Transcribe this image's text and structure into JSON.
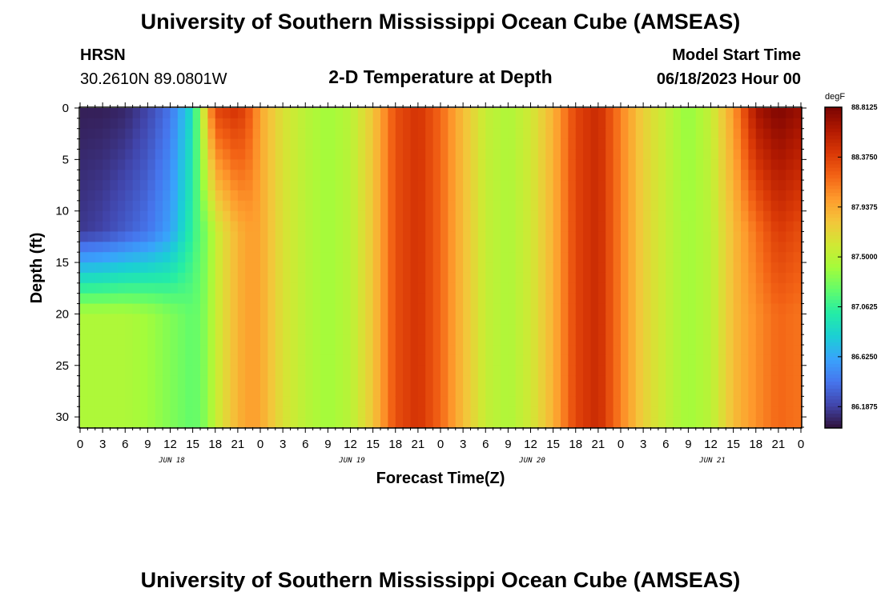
{
  "chart_data": {
    "type": "heatmap",
    "title": "University of Southern Mississippi Ocean Cube (AMSEAS)",
    "station": "HRSN",
    "location": "30.2610N  89.0801W",
    "subtitle": "2-D Temperature at Depth",
    "model_start_label": "Model Start Time",
    "model_start": "06/18/2023 Hour 00",
    "xlabel": "Forecast Time(Z)",
    "ylabel": "Depth (ft)",
    "x_hour_range": [
      0,
      96
    ],
    "y_range": [
      0,
      31
    ],
    "x_tick_labels": [
      "0",
      "3",
      "6",
      "9",
      "12",
      "15",
      "18",
      "21",
      "0",
      "3",
      "6",
      "9",
      "12",
      "15",
      "18",
      "21",
      "0",
      "3",
      "6",
      "9",
      "12",
      "15",
      "18",
      "21",
      "0",
      "3",
      "6",
      "9",
      "12",
      "15",
      "18",
      "21",
      "0"
    ],
    "y_tick_labels": [
      "0",
      "5",
      "10",
      "15",
      "20",
      "25",
      "30"
    ],
    "date_labels": [
      "JUN 18",
      "JUN 19",
      "JUN 20",
      "JUN 21"
    ],
    "colorbar": {
      "units": "degF",
      "range": [
        86.0,
        88.8125
      ],
      "tick_labels": [
        "88.8125",
        "88.3750",
        "87.9375",
        "87.5000",
        "87.0625",
        "86.6250",
        "86.1875"
      ],
      "colors": [
        "#30123b",
        "#4145ab",
        "#4675ed",
        "#39a2fc",
        "#1bcfd4",
        "#24eca6",
        "#61fc6c",
        "#a4fc3b",
        "#d1e834",
        "#f3c63a",
        "#fe9b2d",
        "#f36315",
        "#d93806",
        "#b11901",
        "#7a0402"
      ]
    },
    "columns": [
      {
        "hour": 0,
        "surface": 86.05,
        "mid": 86.15,
        "deep": 87.45
      },
      {
        "hour": 3,
        "surface": 86.05,
        "mid": 86.2,
        "deep": 87.45
      },
      {
        "hour": 6,
        "surface": 86.08,
        "mid": 86.3,
        "deep": 87.45
      },
      {
        "hour": 9,
        "surface": 86.2,
        "mid": 86.4,
        "deep": 87.4
      },
      {
        "hour": 12,
        "surface": 86.4,
        "mid": 86.6,
        "deep": 87.3
      },
      {
        "hour": 15,
        "surface": 86.9,
        "mid": 87.05,
        "deep": 87.2
      },
      {
        "hour": 16,
        "surface": 87.4,
        "mid": 87.2,
        "deep": 87.25
      },
      {
        "hour": 17,
        "surface": 87.9,
        "mid": 87.3,
        "deep": 87.35
      },
      {
        "hour": 18,
        "surface": 88.35,
        "mid": 87.55,
        "deep": 87.55
      },
      {
        "hour": 21,
        "surface": 88.45,
        "mid": 87.9,
        "deep": 87.9
      },
      {
        "hour": 23,
        "surface": 88.2,
        "mid": 88.0,
        "deep": 88.0
      },
      {
        "hour": 24,
        "surface": 87.95,
        "mid": 87.95,
        "deep": 87.95
      },
      {
        "hour": 27,
        "surface": 87.65,
        "mid": 87.65,
        "deep": 87.65
      },
      {
        "hour": 30,
        "surface": 87.5,
        "mid": 87.5,
        "deep": 87.5
      },
      {
        "hour": 33,
        "surface": 87.4,
        "mid": 87.4,
        "deep": 87.4
      },
      {
        "hour": 36,
        "surface": 87.5,
        "mid": 87.5,
        "deep": 87.5
      },
      {
        "hour": 39,
        "surface": 87.8,
        "mid": 87.8,
        "deep": 87.8
      },
      {
        "hour": 42,
        "surface": 88.3,
        "mid": 88.3,
        "deep": 88.3
      },
      {
        "hour": 45,
        "surface": 88.45,
        "mid": 88.45,
        "deep": 88.45
      },
      {
        "hour": 48,
        "surface": 88.2,
        "mid": 88.2,
        "deep": 88.2
      },
      {
        "hour": 51,
        "surface": 87.85,
        "mid": 87.85,
        "deep": 87.85
      },
      {
        "hour": 54,
        "surface": 87.55,
        "mid": 87.55,
        "deep": 87.55
      },
      {
        "hour": 57,
        "surface": 87.45,
        "mid": 87.45,
        "deep": 87.45
      },
      {
        "hour": 60,
        "surface": 87.6,
        "mid": 87.6,
        "deep": 87.6
      },
      {
        "hour": 63,
        "surface": 87.9,
        "mid": 87.9,
        "deep": 87.9
      },
      {
        "hour": 66,
        "surface": 88.35,
        "mid": 88.35,
        "deep": 88.35
      },
      {
        "hour": 69,
        "surface": 88.5,
        "mid": 88.5,
        "deep": 88.5
      },
      {
        "hour": 72,
        "surface": 88.1,
        "mid": 88.1,
        "deep": 88.1
      },
      {
        "hour": 75,
        "surface": 87.75,
        "mid": 87.75,
        "deep": 87.75
      },
      {
        "hour": 78,
        "surface": 87.55,
        "mid": 87.55,
        "deep": 87.55
      },
      {
        "hour": 81,
        "surface": 87.35,
        "mid": 87.4,
        "deep": 87.4
      },
      {
        "hour": 84,
        "surface": 87.55,
        "mid": 87.5,
        "deep": 87.5
      },
      {
        "hour": 87,
        "surface": 88.0,
        "mid": 87.85,
        "deep": 87.85
      },
      {
        "hour": 90,
        "surface": 88.65,
        "mid": 88.15,
        "deep": 88.05
      },
      {
        "hour": 93,
        "surface": 88.8,
        "mid": 88.4,
        "deep": 88.2
      },
      {
        "hour": 96,
        "surface": 88.7,
        "mid": 88.3,
        "deep": 88.15
      }
    ]
  }
}
